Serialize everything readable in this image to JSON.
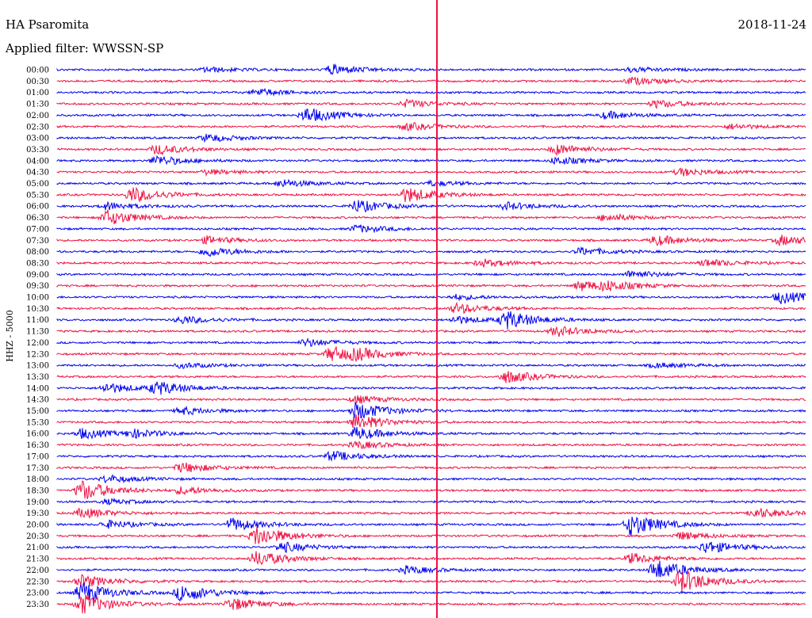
{
  "station_title": "HA Psaromita",
  "date": "2018-11-24",
  "filter_label": "Applied filter: WWSSN-SP",
  "channel_label": "HHZ - 5000",
  "colors": {
    "line_a": "#0000ee",
    "line_b": "#ee1144",
    "marker": "#ee1144"
  },
  "chart_data": {
    "type": "line",
    "tick_labels": [
      "00:00",
      "00:30",
      "01:00",
      "01:30",
      "02:00",
      "02:30",
      "03:00",
      "03:30",
      "04:00",
      "04:30",
      "05:00",
      "05:30",
      "06:00",
      "06:30",
      "07:00",
      "07:30",
      "08:00",
      "08:30",
      "09:00",
      "09:30",
      "10:00",
      "10:30",
      "11:00",
      "11:30",
      "12:00",
      "12:30",
      "13:00",
      "13:30",
      "14:00",
      "14:30",
      "15:00",
      "15:30",
      "16:00",
      "16:30",
      "17:00",
      "17:30",
      "18:00",
      "18:30",
      "19:00",
      "19:30",
      "20:00",
      "20:30",
      "21:00",
      "21:30",
      "22:00",
      "22:30",
      "23:00",
      "23:30"
    ],
    "trace_minutes": 30,
    "events": [
      [
        0,
        6,
        2
      ],
      [
        0,
        11,
        4
      ],
      [
        0,
        23,
        2
      ],
      [
        1,
        23,
        3
      ],
      [
        2,
        8,
        3
      ],
      [
        3,
        14,
        3
      ],
      [
        3,
        24,
        3
      ],
      [
        4,
        10,
        6
      ],
      [
        4,
        22,
        3
      ],
      [
        5,
        14,
        3
      ],
      [
        5,
        27,
        2
      ],
      [
        6,
        6,
        3
      ],
      [
        7,
        4,
        4
      ],
      [
        7,
        20,
        4
      ],
      [
        8,
        4,
        4
      ],
      [
        8,
        20,
        3
      ],
      [
        9,
        6,
        2
      ],
      [
        9,
        25,
        3
      ],
      [
        10,
        9,
        3
      ],
      [
        10,
        15,
        2
      ],
      [
        11,
        3,
        6
      ],
      [
        11,
        14,
        6
      ],
      [
        12,
        2,
        3
      ],
      [
        12,
        12,
        5
      ],
      [
        12,
        18,
        3
      ],
      [
        13,
        2,
        6
      ],
      [
        13,
        22,
        3
      ],
      [
        14,
        12,
        3
      ],
      [
        15,
        6,
        3
      ],
      [
        15,
        24,
        4
      ],
      [
        15,
        29,
        4
      ],
      [
        16,
        6,
        4
      ],
      [
        16,
        21,
        3
      ],
      [
        17,
        17,
        3
      ],
      [
        17,
        26,
        3
      ],
      [
        18,
        23,
        3
      ],
      [
        19,
        21,
        4
      ],
      [
        19,
        22,
        3
      ],
      [
        20,
        16,
        2
      ],
      [
        20,
        29,
        5
      ],
      [
        21,
        16,
        4
      ],
      [
        22,
        18,
        7
      ],
      [
        22,
        5,
        3
      ],
      [
        22,
        16,
        3
      ],
      [
        23,
        20,
        4
      ],
      [
        24,
        10,
        3
      ],
      [
        25,
        11,
        6
      ],
      [
        25,
        12,
        3
      ],
      [
        26,
        5,
        2
      ],
      [
        26,
        24,
        2
      ],
      [
        27,
        18,
        5
      ],
      [
        28,
        2,
        4
      ],
      [
        28,
        4,
        5
      ],
      [
        29,
        12,
        3
      ],
      [
        30,
        5,
        3
      ],
      [
        30,
        12,
        7
      ],
      [
        31,
        12,
        6
      ],
      [
        32,
        1,
        4
      ],
      [
        32,
        3,
        3
      ],
      [
        32,
        12,
        5
      ],
      [
        33,
        12,
        3
      ],
      [
        34,
        11,
        4
      ],
      [
        35,
        5,
        4
      ],
      [
        36,
        2,
        3
      ],
      [
        37,
        1,
        8
      ],
      [
        37,
        5,
        3
      ],
      [
        38,
        2,
        2
      ],
      [
        39,
        1,
        4
      ],
      [
        39,
        28,
        4
      ],
      [
        40,
        2,
        3
      ],
      [
        40,
        7,
        5
      ],
      [
        40,
        23,
        9
      ],
      [
        41,
        8,
        8
      ],
      [
        41,
        25,
        3
      ],
      [
        42,
        9,
        4
      ],
      [
        42,
        26,
        5
      ],
      [
        43,
        8,
        6
      ],
      [
        43,
        23,
        4
      ],
      [
        44,
        14,
        3
      ],
      [
        44,
        24,
        8
      ],
      [
        45,
        1,
        5
      ],
      [
        45,
        25,
        9
      ],
      [
        46,
        1,
        8
      ],
      [
        46,
        5,
        7
      ],
      [
        47,
        1,
        8
      ],
      [
        47,
        7,
        5
      ]
    ]
  }
}
